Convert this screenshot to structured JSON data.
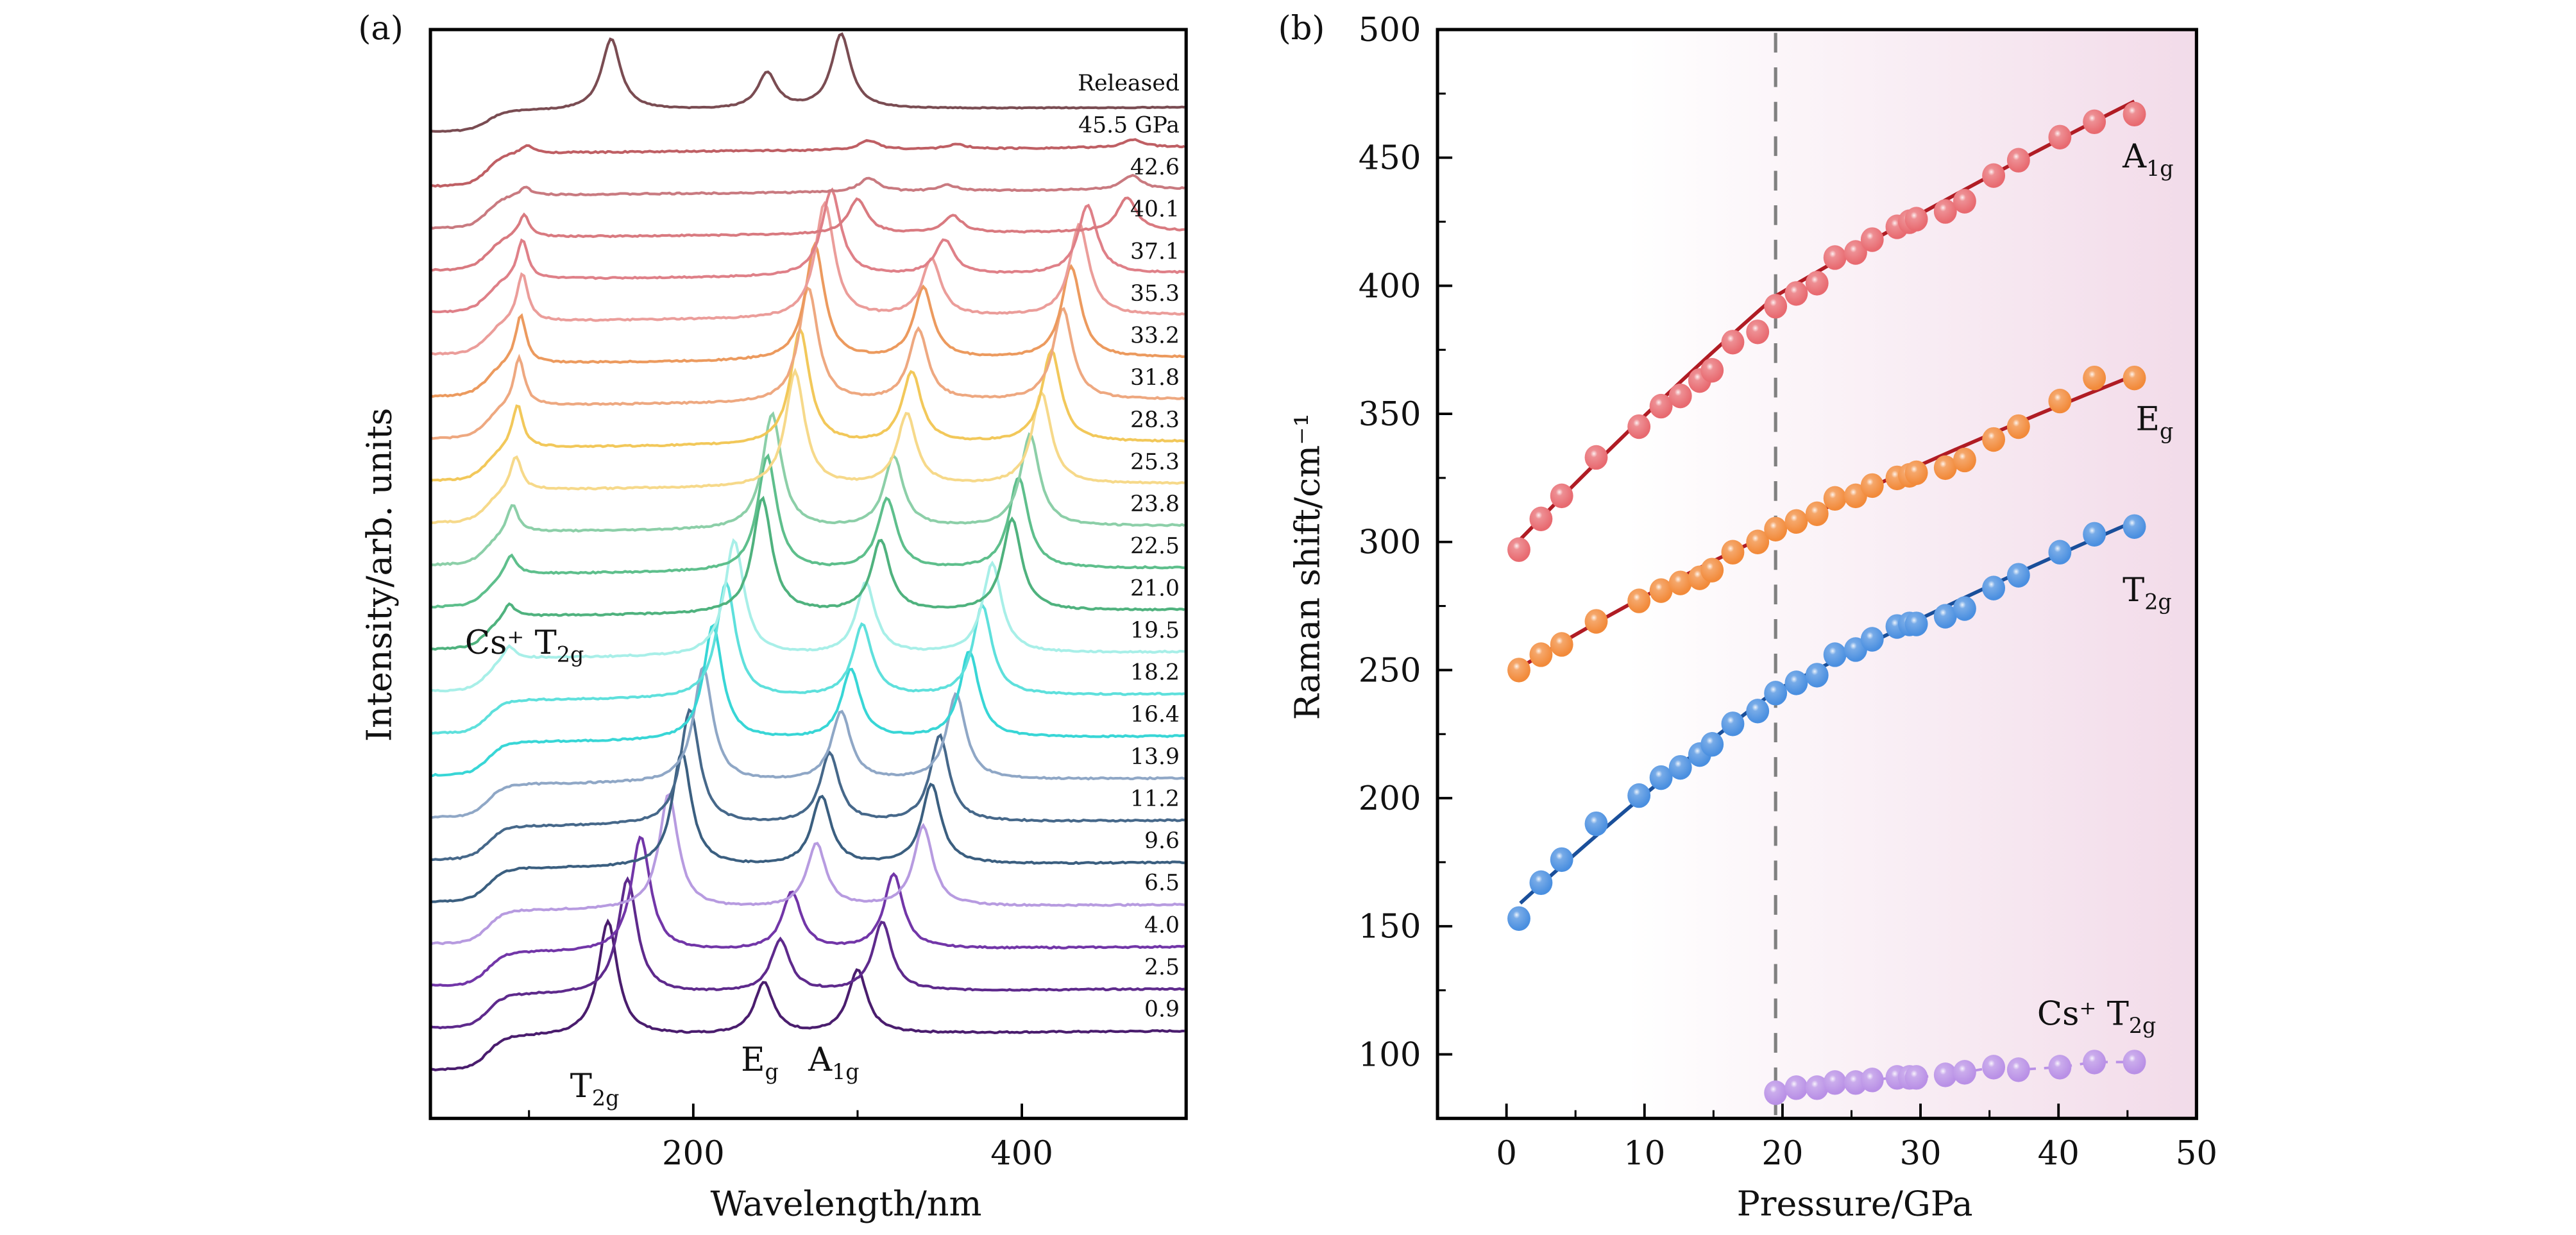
{
  "figure": {
    "panel_a_label": "(a)",
    "panel_b_label": "(b)"
  },
  "chart_data": [
    {
      "type": "line",
      "panel": "a",
      "title": "",
      "xlabel": "Wavelength/nm",
      "ylabel": "Intensity/arb. units",
      "xlim": [
        40,
        500
      ],
      "x_ticks": [
        200,
        400
      ],
      "x_tick_labels": [
        "200",
        "400"
      ],
      "x_minor_ticks": [
        100,
        300
      ],
      "grid": false,
      "stacked": true,
      "legend": "right-side trace labels",
      "annotations": [
        {
          "text": "T",
          "sub": "2g",
          "x": 148,
          "anchor_trace": "0.9"
        },
        {
          "text": "E",
          "sub": "g",
          "x": 243,
          "anchor_trace": "0.9"
        },
        {
          "text": "A",
          "sub": "1g",
          "x": 285,
          "anchor_trace": "0.9"
        },
        {
          "text": "Cs⁺ T",
          "sub": "2g",
          "x": 88,
          "anchor_trace": "19.5"
        }
      ],
      "series": [
        {
          "name": "0.9",
          "color": "#4a1d6e",
          "peaks": [
            [
              148,
              1.0
            ],
            [
              243,
              0.45
            ],
            [
              300,
              0.55
            ]
          ],
          "cs_peak": null
        },
        {
          "name": "2.5",
          "color": "#5e2a8c",
          "peaks": [
            [
              160,
              1.0
            ],
            [
              253,
              0.45
            ],
            [
              315,
              0.6
            ]
          ],
          "cs_peak": null
        },
        {
          "name": "4.0",
          "color": "#7236a8",
          "peaks": [
            [
              168,
              1.0
            ],
            [
              260,
              0.5
            ],
            [
              322,
              0.65
            ]
          ],
          "cs_peak": null
        },
        {
          "name": "6.5",
          "color": "#b79be0",
          "peaks": [
            [
              185,
              1.0
            ],
            [
              275,
              0.55
            ],
            [
              340,
              0.7
            ]
          ],
          "cs_peak": null
        },
        {
          "name": "9.6",
          "color": "#3b5f80",
          "peaks": [
            [
              193,
              1.0
            ],
            [
              278,
              0.6
            ],
            [
              345,
              0.7
            ]
          ],
          "cs_peak": null
        },
        {
          "name": "11.2",
          "color": "#46688a",
          "peaks": [
            [
              198,
              1.0
            ],
            [
              283,
              0.6
            ],
            [
              350,
              0.75
            ]
          ],
          "cs_peak": null
        },
        {
          "name": "13.9",
          "color": "#8fa7c6",
          "peaks": [
            [
              206,
              1.0
            ],
            [
              290,
              0.6
            ],
            [
              360,
              0.75
            ]
          ],
          "cs_peak": null
        },
        {
          "name": "16.4",
          "color": "#38d6d6",
          "peaks": [
            [
              212,
              1.0
            ],
            [
              296,
              0.6
            ],
            [
              368,
              0.75
            ]
          ],
          "cs_peak": null
        },
        {
          "name": "18.2",
          "color": "#5ee0dc",
          "peaks": [
            [
              220,
              1.0
            ],
            [
              303,
              0.62
            ],
            [
              376,
              0.78
            ]
          ],
          "cs_peak": null
        },
        {
          "name": "19.5",
          "color": "#a8efe8",
          "peaks": [
            [
              225,
              1.0
            ],
            [
              305,
              0.62
            ],
            [
              382,
              0.78
            ]
          ],
          "cs_peak": [
            88,
            0.12
          ]
        },
        {
          "name": "21.0",
          "color": "#4fb27e",
          "peaks": [
            [
              242,
              1.0
            ],
            [
              314,
              0.62
            ],
            [
              394,
              0.8
            ]
          ],
          "cs_peak": [
            88,
            0.12
          ]
        },
        {
          "name": "22.5",
          "color": "#5ebf8c",
          "peaks": [
            [
              245,
              1.0
            ],
            [
              318,
              0.62
            ],
            [
              398,
              0.8
            ]
          ],
          "cs_peak": [
            89,
            0.18
          ]
        },
        {
          "name": "23.8",
          "color": "#8ccfa8",
          "peaks": [
            [
              248,
              1.0
            ],
            [
              322,
              0.62
            ],
            [
              405,
              0.8
            ]
          ],
          "cs_peak": [
            90,
            0.25
          ]
        },
        {
          "name": "25.3",
          "color": "#f6d98a",
          "peaks": [
            [
              262,
              1.0
            ],
            [
              330,
              0.62
            ],
            [
              412,
              0.8
            ]
          ],
          "cs_peak": [
            92,
            0.3
          ]
        },
        {
          "name": "28.3",
          "color": "#f2c85a",
          "peaks": [
            [
              265,
              1.0
            ],
            [
              333,
              0.62
            ],
            [
              418,
              0.8
            ]
          ],
          "cs_peak": [
            93,
            0.38
          ]
        },
        {
          "name": "31.8",
          "color": "#eea880",
          "peaks": [
            [
              270,
              1.0
            ],
            [
              337,
              0.62
            ],
            [
              425,
              0.8
            ]
          ],
          "cs_peak": [
            94,
            0.42
          ]
        },
        {
          "name": "33.2",
          "color": "#ec9a5e",
          "peaks": [
            [
              274,
              1.0
            ],
            [
              340,
              0.62
            ],
            [
              430,
              0.8
            ]
          ],
          "cs_peak": [
            95,
            0.42
          ]
        },
        {
          "name": "35.3",
          "color": "#eb9d9a",
          "peaks": [
            [
              280,
              1.0
            ],
            [
              345,
              0.5
            ],
            [
              435,
              0.8
            ]
          ],
          "cs_peak": [
            96,
            0.42
          ]
        },
        {
          "name": "37.1",
          "color": "#df8088",
          "peaks": [
            [
              284,
              0.75
            ],
            [
              353,
              0.3
            ],
            [
              440,
              0.6
            ]
          ],
          "cs_peak": [
            96,
            0.35
          ]
        },
        {
          "name": "40.1",
          "color": "#d97a80",
          "peaks": [
            [
              300,
              0.3
            ],
            [
              358,
              0.15
            ],
            [
              464,
              0.3
            ]
          ],
          "cs_peak": [
            97,
            0.2
          ]
        },
        {
          "name": "42.6",
          "color": "#c97a80",
          "peaks": [
            [
              307,
              0.12
            ],
            [
              355,
              0.05
            ],
            [
              467,
              0.12
            ]
          ],
          "cs_peak": [
            98,
            0.07
          ]
        },
        {
          "name": "45.5 GPa",
          "color": "#bf5f64",
          "peaks": [
            [
              307,
              0.08
            ],
            [
              360,
              0.04
            ],
            [
              468,
              0.07
            ]
          ],
          "cs_peak": [
            99,
            0.07
          ]
        },
        {
          "name": "Released",
          "color": "#7a4c52",
          "peaks": [
            [
              150,
              1.0
            ],
            [
              245,
              0.5
            ],
            [
              290,
              1.05
            ]
          ],
          "cs_peak": null
        }
      ]
    },
    {
      "type": "scatter",
      "panel": "b",
      "title": "",
      "xlabel": "Pressure/GPa",
      "ylabel": "Raman shift/cm⁻¹",
      "xlim": [
        -5,
        50
      ],
      "ylim": [
        75,
        500
      ],
      "x_ticks": [
        0,
        10,
        20,
        30,
        40,
        50
      ],
      "x_tick_labels": [
        "0",
        "10",
        "20",
        "30",
        "40",
        "50"
      ],
      "y_ticks": [
        100,
        150,
        200,
        250,
        300,
        350,
        400,
        450,
        500
      ],
      "y_tick_labels": [
        "100",
        "150",
        "200",
        "250",
        "300",
        "350",
        "400",
        "450",
        "500"
      ],
      "grid": false,
      "transition_pressure": 19.5,
      "background_gradient": {
        "from": "#ffffff",
        "to": "#f2dbe9"
      },
      "legend": "inline labels at right",
      "series": [
        {
          "name": "A1g",
          "label_main": "A",
          "label_sub": "1g",
          "color": "#e86a70",
          "fit_color": "#b01c24",
          "x": [
            0.9,
            2.5,
            4.0,
            6.5,
            9.6,
            11.2,
            12.6,
            14.0,
            14.9,
            16.4,
            18.2,
            19.5,
            21.0,
            22.5,
            23.8,
            25.3,
            26.5,
            28.3,
            29.2,
            29.7,
            31.8,
            33.2,
            35.3,
            37.1,
            40.1,
            42.6,
            45.5
          ],
          "y": [
            297,
            309,
            318,
            333,
            345,
            353,
            357,
            363,
            367,
            378,
            382,
            392,
            397,
            401,
            411,
            413,
            418,
            423,
            425,
            426,
            429,
            433,
            443,
            449,
            458,
            464,
            467
          ],
          "fit": [
            [
              1,
              301
            ],
            [
              19.5,
              396
            ],
            [
              45.5,
              472
            ]
          ]
        },
        {
          "name": "Eg",
          "label_main": "E",
          "label_sub": "g",
          "color": "#f28a3a",
          "fit_color": "#b01c24",
          "x": [
            0.9,
            2.5,
            4.0,
            6.5,
            9.6,
            11.2,
            12.6,
            14.0,
            14.9,
            16.4,
            18.2,
            19.5,
            21.0,
            22.5,
            23.8,
            25.3,
            26.5,
            28.3,
            29.2,
            29.7,
            31.8,
            33.2,
            35.3,
            37.1,
            40.1,
            42.6,
            45.5
          ],
          "y": [
            250,
            256,
            260,
            269,
            277,
            281,
            284,
            286,
            289,
            296,
            300,
            305,
            308,
            311,
            317,
            318,
            322,
            325,
            326,
            327,
            329,
            332,
            340,
            345,
            355,
            364,
            364
          ],
          "fit": [
            [
              1,
              251
            ],
            [
              19.5,
              304
            ],
            [
              45.5,
              365
            ]
          ]
        },
        {
          "name": "T2g",
          "label_main": "T",
          "label_sub": "2g",
          "color": "#4a8fe0",
          "fit_color": "#1a4f9a",
          "x": [
            0.9,
            2.5,
            4.0,
            6.5,
            9.6,
            11.2,
            12.6,
            14.0,
            14.9,
            16.4,
            18.2,
            19.5,
            21.0,
            22.5,
            23.8,
            25.3,
            26.5,
            28.3,
            29.2,
            29.7,
            31.8,
            33.2,
            35.3,
            37.1,
            40.1,
            42.6,
            45.5
          ],
          "y": [
            153,
            167,
            176,
            190,
            201,
            208,
            212,
            217,
            221,
            229,
            234,
            241,
            245,
            248,
            256,
            258,
            262,
            267,
            268,
            268,
            271,
            274,
            282,
            287,
            296,
            303,
            306
          ],
          "fit": [
            [
              1,
              159
            ],
            [
              19.5,
              242
            ],
            [
              45.5,
              308
            ]
          ]
        },
        {
          "name": "Cs+ T2g",
          "label_main": "Cs⁺ T",
          "label_sub": "2g",
          "color": "#b990e6",
          "fit_color": "#b990e6",
          "x": [
            19.5,
            21.0,
            22.5,
            23.8,
            25.3,
            26.5,
            28.3,
            29.2,
            29.7,
            31.8,
            33.2,
            35.3,
            37.1,
            40.1,
            42.6,
            45.5
          ],
          "y": [
            85,
            87,
            87,
            89,
            89,
            90,
            91,
            91,
            91,
            92,
            93,
            95,
            94,
            95,
            97,
            97
          ],
          "fit": null
        }
      ]
    }
  ]
}
